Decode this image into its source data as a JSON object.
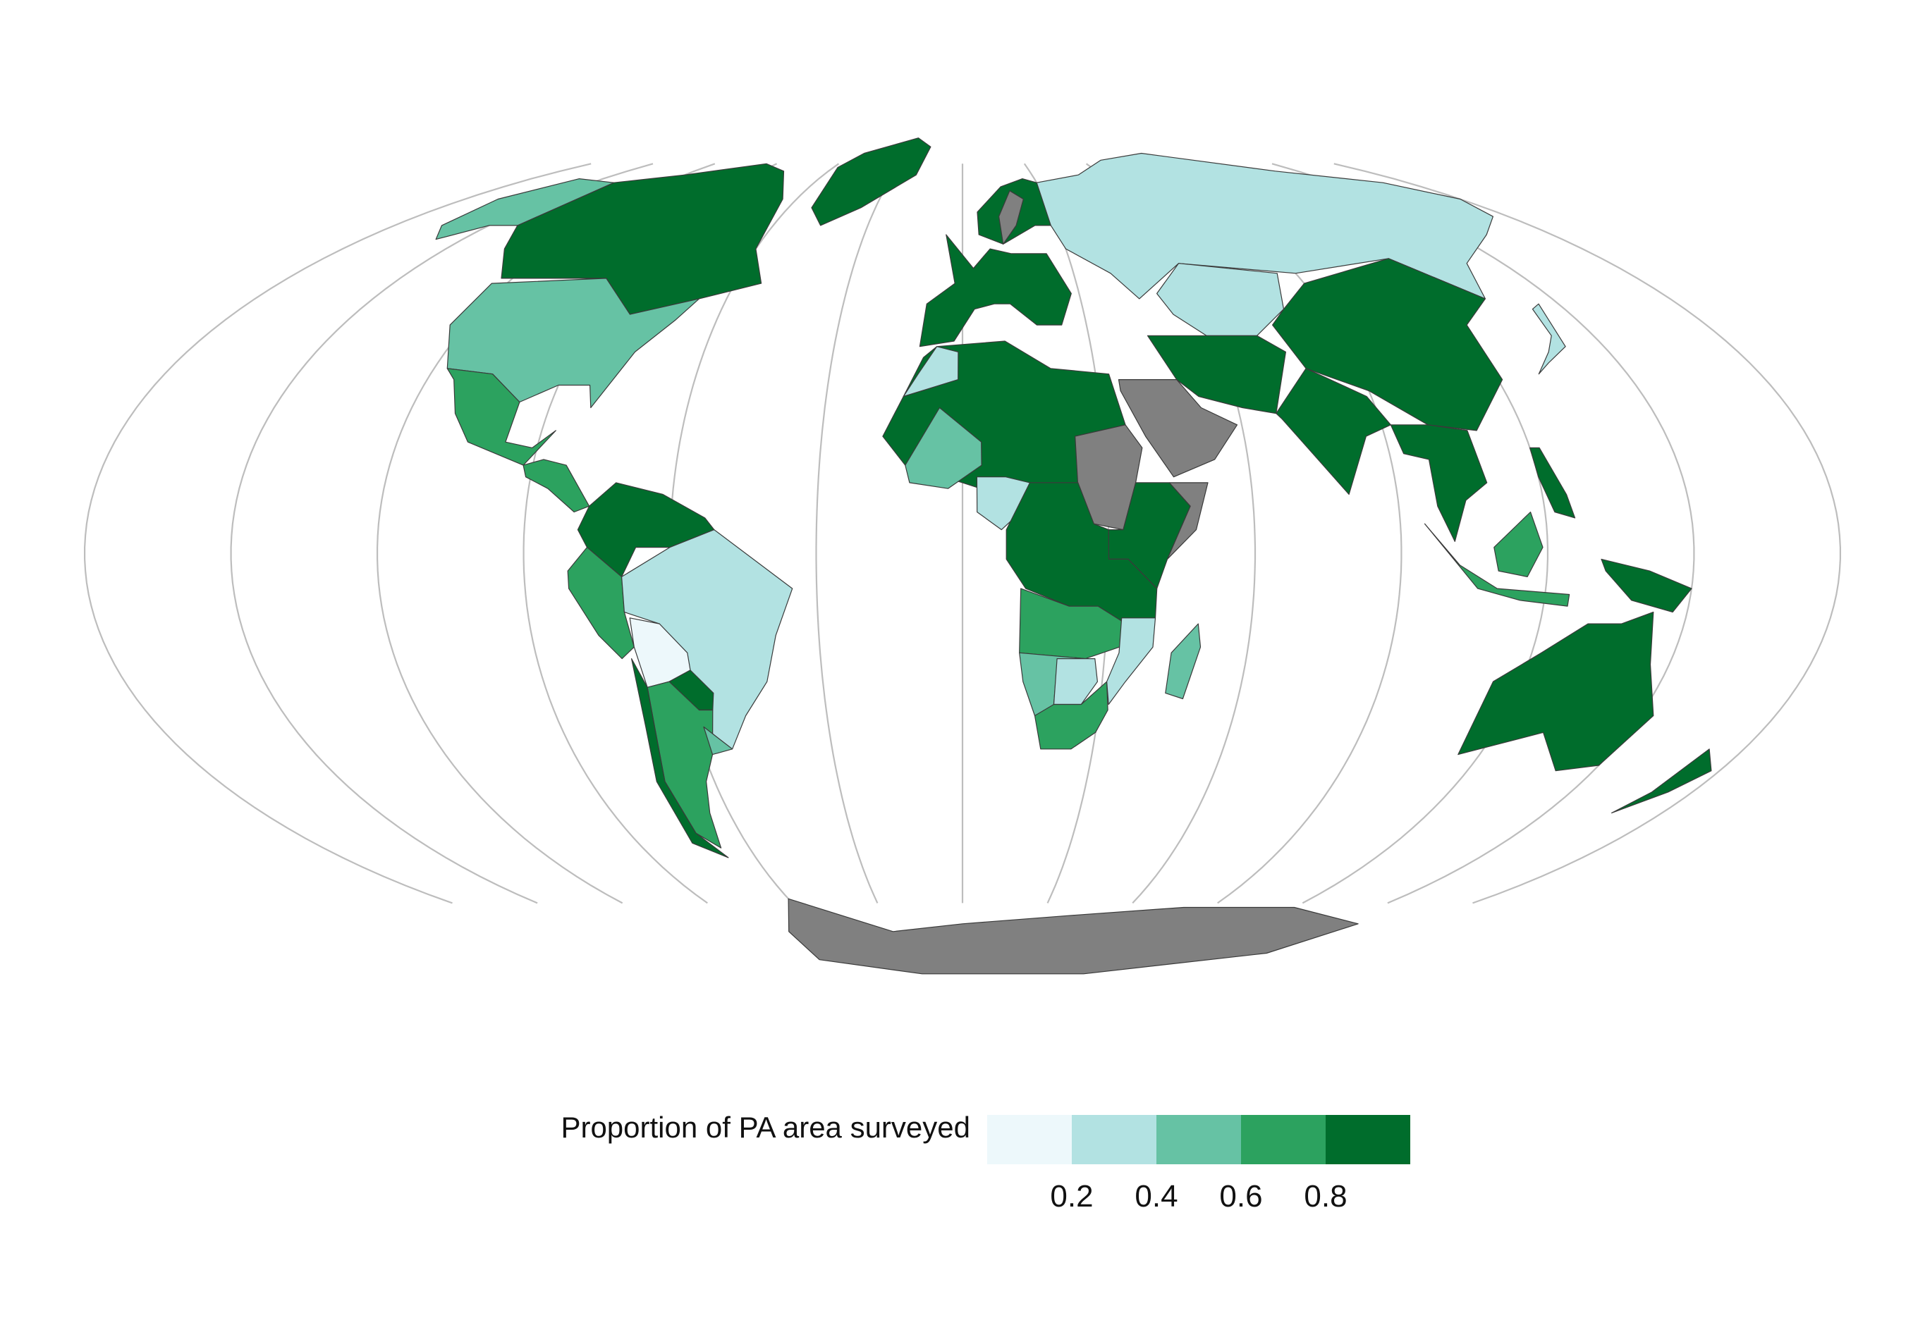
{
  "legend": {
    "title": "Proportion of PA area surveyed",
    "bins": [
      {
        "lower": 0.0,
        "upper": 0.2,
        "color": "#edf8fb"
      },
      {
        "lower": 0.2,
        "upper": 0.4,
        "color": "#b2e2e2"
      },
      {
        "lower": 0.4,
        "upper": 0.6,
        "color": "#66c2a4"
      },
      {
        "lower": 0.6,
        "upper": 0.8,
        "color": "#2ca25f"
      },
      {
        "lower": 0.8,
        "upper": 1.0,
        "color": "#006d2c"
      }
    ],
    "ticks": [
      "0.2",
      "0.4",
      "0.6",
      "0.8"
    ],
    "no_data_color": "#808080"
  },
  "map": {
    "projection": "mollweide",
    "graticule_meridians_deg": [
      -180,
      -150,
      -120,
      -90,
      -60,
      -30,
      0,
      30,
      60,
      90,
      120,
      150,
      180
    ],
    "regions": [
      {
        "name": "Canada",
        "value_bin": 4
      },
      {
        "name": "Greenland",
        "value_bin": 4
      },
      {
        "name": "Alaska",
        "value_bin": 2
      },
      {
        "name": "United States",
        "value_bin": 2
      },
      {
        "name": "Mexico",
        "value_bin": 3
      },
      {
        "name": "Central America",
        "value_bin": 3
      },
      {
        "name": "Colombia / Venezuela / Guianas",
        "value_bin": 4
      },
      {
        "name": "Peru / Ecuador",
        "value_bin": 3
      },
      {
        "name": "Brazil",
        "value_bin": 1
      },
      {
        "name": "Bolivia",
        "value_bin": 0
      },
      {
        "name": "Paraguay",
        "value_bin": 4
      },
      {
        "name": "Argentina",
        "value_bin": 3
      },
      {
        "name": "Chile",
        "value_bin": 4
      },
      {
        "name": "Uruguay",
        "value_bin": 2
      },
      {
        "name": "Europe West",
        "value_bin": 4
      },
      {
        "name": "Scandinavia",
        "value_bin": 4
      },
      {
        "name": "Sweden",
        "value_bin": null
      },
      {
        "name": "Russia",
        "value_bin": 1
      },
      {
        "name": "Kazakhstan / Central Asia",
        "value_bin": 1
      },
      {
        "name": "China",
        "value_bin": 4
      },
      {
        "name": "India",
        "value_bin": 4
      },
      {
        "name": "Iran / Pakistan",
        "value_bin": 4
      },
      {
        "name": "Arabian Peninsula",
        "value_bin": null
      },
      {
        "name": "Southeast Asia",
        "value_bin": 4
      },
      {
        "name": "Indonesia",
        "value_bin": 3
      },
      {
        "name": "Borneo",
        "value_bin": 3
      },
      {
        "name": "Papua New Guinea",
        "value_bin": 4
      },
      {
        "name": "Australia",
        "value_bin": 4
      },
      {
        "name": "New Zealand",
        "value_bin": 4
      },
      {
        "name": "North Africa",
        "value_bin": 4
      },
      {
        "name": "Morocco",
        "value_bin": 1
      },
      {
        "name": "Mali",
        "value_bin": 2
      },
      {
        "name": "Sudan",
        "value_bin": null
      },
      {
        "name": "Ethiopia / East Africa",
        "value_bin": 4
      },
      {
        "name": "Somalia",
        "value_bin": null
      },
      {
        "name": "Nigeria",
        "value_bin": 1
      },
      {
        "name": "Central Africa",
        "value_bin": 4
      },
      {
        "name": "Angola / Zambia",
        "value_bin": 3
      },
      {
        "name": "Namibia",
        "value_bin": 2
      },
      {
        "name": "Botswana",
        "value_bin": 1
      },
      {
        "name": "South Africa",
        "value_bin": 3
      },
      {
        "name": "Madagascar",
        "value_bin": 2
      },
      {
        "name": "Mozambique",
        "value_bin": 1
      },
      {
        "name": "Japan",
        "value_bin": 1
      },
      {
        "name": "Philippines",
        "value_bin": 4
      },
      {
        "name": "Antarctica",
        "value_bin": null
      }
    ]
  }
}
